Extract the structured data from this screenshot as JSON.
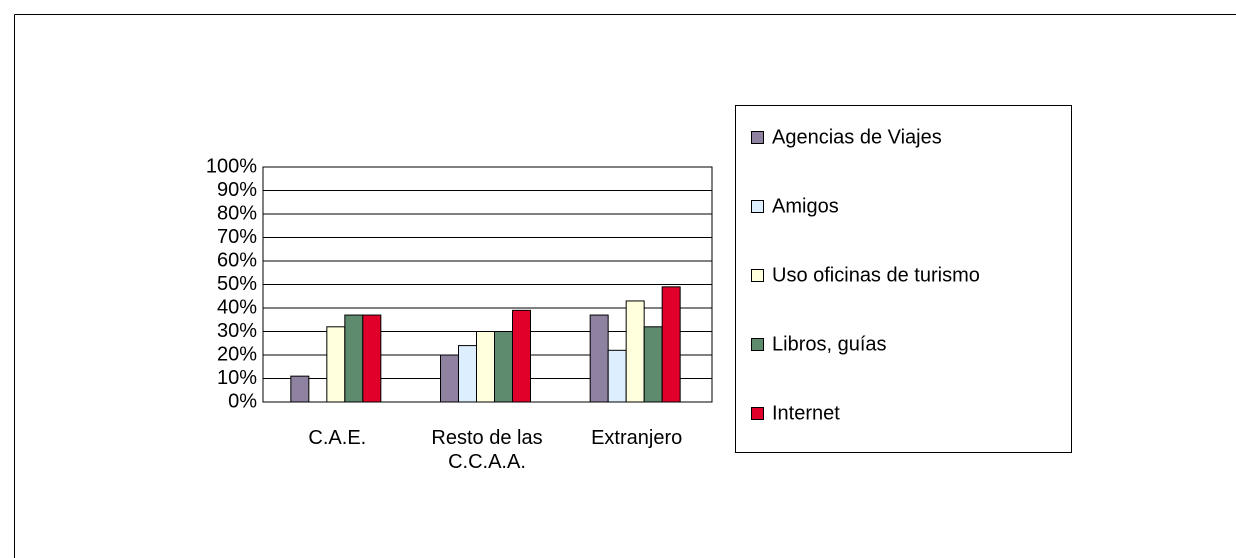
{
  "chart_data": {
    "type": "bar",
    "categories": [
      "C.A.E.",
      "Resto de las C.C.A.A.",
      "Extranjero"
    ],
    "series": [
      {
        "name": "Agencias de Viajes",
        "color": "#8e82a0",
        "values": [
          11,
          20,
          37
        ]
      },
      {
        "name": "Amigos",
        "color": "#ddeeff",
        "values": [
          0,
          24,
          22
        ]
      },
      {
        "name": "Uso oficinas de turismo",
        "color": "#ffffdd",
        "values": [
          32,
          30,
          43
        ]
      },
      {
        "name": "Libros, guías",
        "color": "#5e8a6e",
        "values": [
          37,
          30,
          32
        ]
      },
      {
        "name": "Internet",
        "color": "#e0002a",
        "values": [
          37,
          39,
          49
        ]
      }
    ],
    "ylim": [
      0,
      100
    ],
    "yticks": [
      {
        "value": 0,
        "label": "0%"
      },
      {
        "value": 10,
        "label": "10%"
      },
      {
        "value": 20,
        "label": "20%"
      },
      {
        "value": 30,
        "label": "30%"
      },
      {
        "value": 40,
        "label": "40%"
      },
      {
        "value": 50,
        "label": "50%"
      },
      {
        "value": 60,
        "label": "60%"
      },
      {
        "value": 70,
        "label": "70%"
      },
      {
        "value": 80,
        "label": "80%"
      },
      {
        "value": 90,
        "label": "90%"
      },
      {
        "value": 100,
        "label": "100%"
      }
    ],
    "grid": true,
    "legend": "right"
  }
}
